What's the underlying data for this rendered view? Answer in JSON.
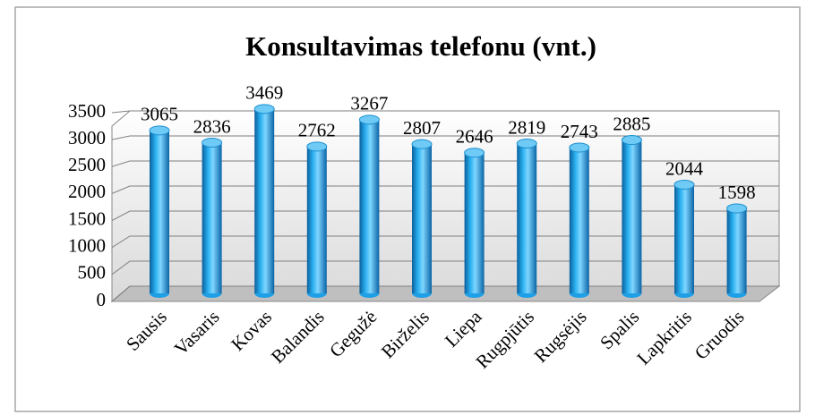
{
  "chart_data": {
    "type": "bar",
    "title": "Konsultavimas telefonu (vnt.)",
    "categories": [
      "Sausis",
      "Vasaris",
      "Kovas",
      "Balandis",
      "Gegužė",
      "Birželis",
      "Liepa",
      "Rugpjūtis",
      "Rugsėjis",
      "Spalis",
      "Lapkritis",
      "Gruodis"
    ],
    "values": [
      3065,
      2836,
      3469,
      2762,
      3267,
      2807,
      2646,
      2819,
      2743,
      2885,
      2044,
      1598
    ],
    "color": "#1e9fe6",
    "ylim": [
      0,
      3500
    ],
    "yticks": [
      0,
      500,
      1000,
      1500,
      2000,
      2500,
      3000,
      3500
    ],
    "grid": true
  }
}
